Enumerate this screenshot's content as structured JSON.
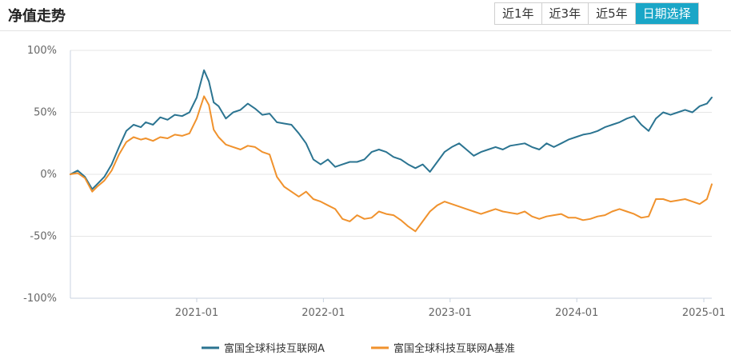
{
  "header": {
    "title": "净值走势",
    "tabs": [
      {
        "label": "近1年",
        "active": false
      },
      {
        "label": "近3年",
        "active": false
      },
      {
        "label": "近5年",
        "active": false
      },
      {
        "label": "日期选择",
        "active": true
      }
    ]
  },
  "colors": {
    "series1": "#2b7491",
    "series2": "#f0922d",
    "accent": "#1aa6c7"
  },
  "chart_data": {
    "type": "line",
    "title": "",
    "xlabel": "",
    "ylabel": "",
    "x_range": [
      "2020-01-03",
      "2025-01-24"
    ],
    "ylim": [
      -100,
      100
    ],
    "yticks": [
      100,
      50,
      0,
      -50,
      -100
    ],
    "ytick_labels": [
      "100%",
      "50%",
      "0%",
      "-50%",
      "-100%"
    ],
    "xticks": [
      "2021-01-01",
      "2022-01-01",
      "2023-01-01",
      "2024-01-01",
      "2025-01-01"
    ],
    "xtick_labels": [
      "2021-01",
      "2022-01",
      "2023-01",
      "2024-01",
      "2025-01"
    ],
    "grid": true,
    "legend_position": "bottom",
    "series": [
      {
        "name": "富国全球科技互联网A",
        "x": [
          "2020-01-03",
          "2020-01-24",
          "2020-02-14",
          "2020-03-06",
          "2020-03-20",
          "2020-04-10",
          "2020-05-01",
          "2020-05-22",
          "2020-06-12",
          "2020-07-03",
          "2020-07-24",
          "2020-08-07",
          "2020-08-28",
          "2020-09-18",
          "2020-10-09",
          "2020-10-30",
          "2020-11-20",
          "2020-12-11",
          "2021-01-01",
          "2021-01-22",
          "2021-02-05",
          "2021-02-19",
          "2021-03-05",
          "2021-03-26",
          "2021-04-16",
          "2021-05-07",
          "2021-05-28",
          "2021-06-18",
          "2021-07-09",
          "2021-07-30",
          "2021-08-20",
          "2021-09-10",
          "2021-10-01",
          "2021-10-22",
          "2021-11-12",
          "2021-12-03",
          "2021-12-24",
          "2022-01-14",
          "2022-02-04",
          "2022-02-25",
          "2022-03-18",
          "2022-04-08",
          "2022-04-29",
          "2022-05-20",
          "2022-06-10",
          "2022-07-01",
          "2022-07-22",
          "2022-08-12",
          "2022-09-02",
          "2022-09-23",
          "2022-10-14",
          "2022-11-04",
          "2022-11-25",
          "2022-12-16",
          "2023-01-06",
          "2023-01-27",
          "2023-02-17",
          "2023-03-10",
          "2023-03-31",
          "2023-04-21",
          "2023-05-12",
          "2023-06-02",
          "2023-06-23",
          "2023-07-14",
          "2023-08-04",
          "2023-08-25",
          "2023-09-15",
          "2023-10-06",
          "2023-10-27",
          "2023-11-17",
          "2023-12-08",
          "2023-12-29",
          "2024-01-19",
          "2024-02-09",
          "2024-03-01",
          "2024-03-22",
          "2024-04-12",
          "2024-05-03",
          "2024-05-24",
          "2024-06-14",
          "2024-07-05",
          "2024-07-26",
          "2024-08-16",
          "2024-09-06",
          "2024-09-27",
          "2024-10-18",
          "2024-11-08",
          "2024-11-29",
          "2024-12-20",
          "2025-01-10",
          "2025-01-24"
        ],
        "values": [
          0,
          3,
          -2,
          -12,
          -8,
          -2,
          8,
          22,
          35,
          40,
          38,
          42,
          40,
          46,
          44,
          48,
          47,
          50,
          62,
          84,
          75,
          58,
          55,
          45,
          50,
          52,
          57,
          53,
          48,
          49,
          42,
          41,
          40,
          33,
          25,
          12,
          8,
          12,
          6,
          8,
          10,
          10,
          12,
          18,
          20,
          18,
          14,
          12,
          8,
          5,
          8,
          2,
          10,
          18,
          22,
          25,
          20,
          15,
          18,
          20,
          22,
          20,
          23,
          24,
          25,
          22,
          20,
          25,
          22,
          25,
          28,
          30,
          32,
          33,
          35,
          38,
          40,
          42,
          45,
          47,
          40,
          35,
          45,
          50,
          48,
          50,
          52,
          50,
          55,
          57,
          62
        ]
      },
      {
        "name": "富国全球科技互联网A基准",
        "x": [
          "2020-01-03",
          "2020-01-24",
          "2020-02-14",
          "2020-03-06",
          "2020-03-20",
          "2020-04-10",
          "2020-05-01",
          "2020-05-22",
          "2020-06-12",
          "2020-07-03",
          "2020-07-24",
          "2020-08-07",
          "2020-08-28",
          "2020-09-18",
          "2020-10-09",
          "2020-10-30",
          "2020-11-20",
          "2020-12-11",
          "2021-01-01",
          "2021-01-22",
          "2021-02-05",
          "2021-02-19",
          "2021-03-05",
          "2021-03-26",
          "2021-04-16",
          "2021-05-07",
          "2021-05-28",
          "2021-06-18",
          "2021-07-09",
          "2021-07-30",
          "2021-08-20",
          "2021-09-10",
          "2021-10-01",
          "2021-10-22",
          "2021-11-12",
          "2021-12-03",
          "2021-12-24",
          "2022-01-14",
          "2022-02-04",
          "2022-02-25",
          "2022-03-18",
          "2022-04-08",
          "2022-04-29",
          "2022-05-20",
          "2022-06-10",
          "2022-07-01",
          "2022-07-22",
          "2022-08-12",
          "2022-09-02",
          "2022-09-23",
          "2022-10-14",
          "2022-11-04",
          "2022-11-25",
          "2022-12-16",
          "2023-01-06",
          "2023-01-27",
          "2023-02-17",
          "2023-03-10",
          "2023-03-31",
          "2023-04-21",
          "2023-05-12",
          "2023-06-02",
          "2023-06-23",
          "2023-07-14",
          "2023-08-04",
          "2023-08-25",
          "2023-09-15",
          "2023-10-06",
          "2023-10-27",
          "2023-11-17",
          "2023-12-08",
          "2023-12-29",
          "2024-01-19",
          "2024-02-09",
          "2024-03-01",
          "2024-03-22",
          "2024-04-12",
          "2024-05-03",
          "2024-05-24",
          "2024-06-14",
          "2024-07-05",
          "2024-07-26",
          "2024-08-16",
          "2024-09-06",
          "2024-09-27",
          "2024-10-18",
          "2024-11-08",
          "2024-11-29",
          "2024-12-20",
          "2025-01-10",
          "2025-01-24"
        ],
        "values": [
          0,
          1,
          -3,
          -14,
          -10,
          -5,
          3,
          16,
          26,
          30,
          28,
          29,
          27,
          30,
          29,
          32,
          31,
          33,
          45,
          63,
          56,
          36,
          30,
          24,
          22,
          20,
          23,
          22,
          18,
          16,
          -2,
          -10,
          -14,
          -18,
          -14,
          -20,
          -22,
          -25,
          -28,
          -36,
          -38,
          -33,
          -36,
          -35,
          -30,
          -32,
          -33,
          -37,
          -42,
          -46,
          -38,
          -30,
          -25,
          -22,
          -24,
          -26,
          -28,
          -30,
          -32,
          -30,
          -28,
          -30,
          -31,
          -32,
          -30,
          -34,
          -36,
          -34,
          -33,
          -32,
          -35,
          -35,
          -37,
          -36,
          -34,
          -33,
          -30,
          -28,
          -30,
          -32,
          -35,
          -34,
          -20,
          -20,
          -22,
          -21,
          -20,
          -22,
          -24,
          -20,
          -8
        ]
      }
    ]
  }
}
